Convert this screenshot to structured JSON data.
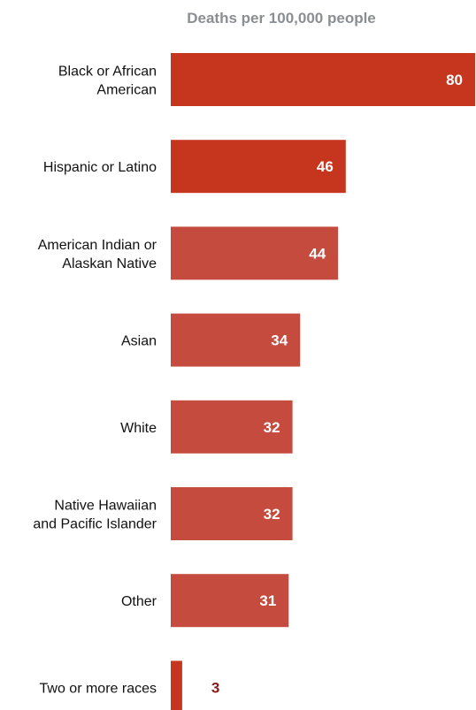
{
  "chart_data": {
    "type": "bar",
    "orientation": "horizontal",
    "title": "Deaths per 100,000 people",
    "categories": [
      [
        "Black or African",
        "American"
      ],
      [
        "Hispanic or Latino"
      ],
      [
        "American Indian or",
        "Alaskan Native"
      ],
      [
        "Asian"
      ],
      [
        "White"
      ],
      [
        "Native Hawaiian",
        "and Pacific Islander"
      ],
      [
        "Other"
      ],
      [
        "Two or more races"
      ]
    ],
    "values": [
      80,
      46,
      44,
      34,
      32,
      32,
      31,
      3
    ],
    "colors": [
      "#c6361f",
      "#c6361f",
      "#c44b3d",
      "#c44b3d",
      "#c44b3d",
      "#c44b3d",
      "#c44b3d",
      "#c6361f"
    ],
    "label_color_inside": "#ffffff",
    "label_color_outside": "#8b1a1a",
    "xlim": [
      0,
      80
    ],
    "grid": false,
    "legend": "none"
  }
}
